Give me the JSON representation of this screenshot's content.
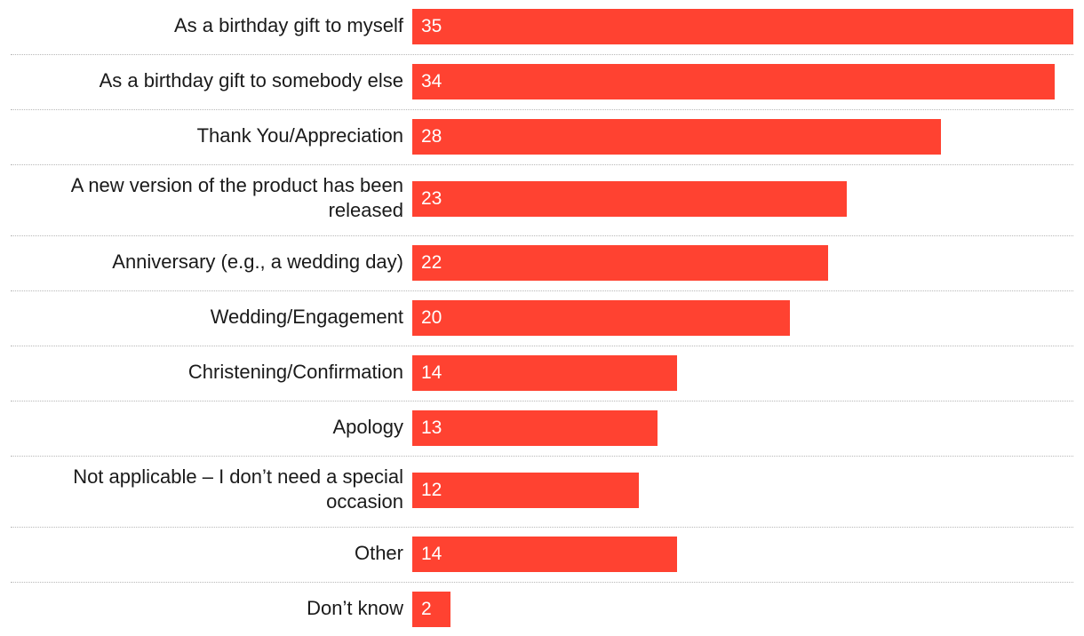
{
  "chart_data": {
    "type": "bar",
    "orientation": "horizontal",
    "title": "",
    "xlabel": "",
    "ylabel": "",
    "xlim": [
      0,
      35
    ],
    "bar_color": "#ff4231",
    "categories": [
      "As a birthday gift to myself",
      "As a birthday gift to somebody else",
      "Thank You/Appreciation",
      "A new version of the product has been released",
      "Anniversary (e.g., a wedding day)",
      "Wedding/Engagement",
      "Christening/Confirmation",
      "Apology",
      "Not applicable – I don’t need a special occasion",
      "Other",
      "Don’t know"
    ],
    "values": [
      35,
      34,
      28,
      23,
      22,
      20,
      14,
      13,
      12,
      14,
      2
    ]
  }
}
